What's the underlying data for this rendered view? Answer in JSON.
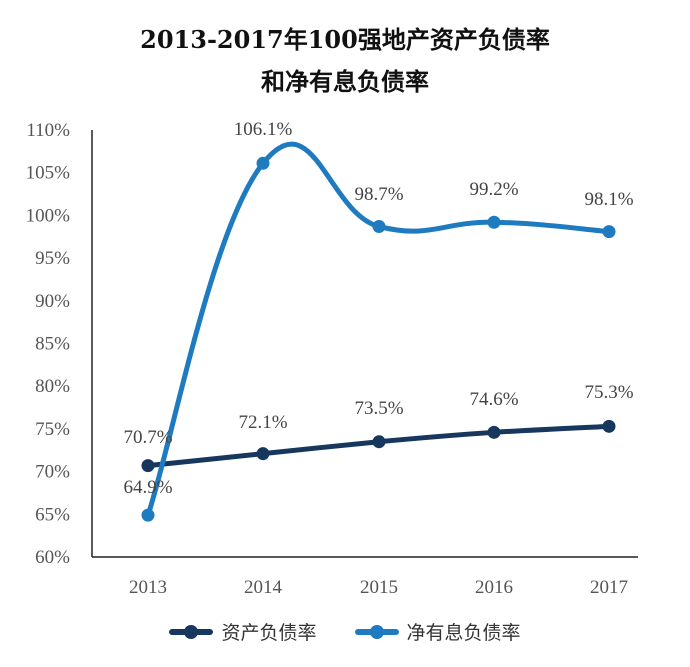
{
  "chart_data": {
    "type": "line",
    "title_line1": "2013-2017年100强地产资产负债率",
    "title_line2": "和净有息负债率",
    "categories": [
      "2013",
      "2014",
      "2015",
      "2016",
      "2017"
    ],
    "y_ticks": [
      "60%",
      "65%",
      "70%",
      "75%",
      "80%",
      "85%",
      "90%",
      "95%",
      "100%",
      "105%",
      "110%"
    ],
    "ylim": [
      60,
      110
    ],
    "grid": false,
    "legend_position": "bottom",
    "series": [
      {
        "name": "资产负债率",
        "color": "#17375e",
        "values": [
          70.7,
          72.1,
          73.5,
          74.6,
          75.3
        ],
        "labels": [
          "70.7%",
          "72.1%",
          "73.5%",
          "74.6%",
          "75.3%"
        ]
      },
      {
        "name": "净有息负债率",
        "color": "#1f7bbf",
        "values": [
          64.9,
          106.1,
          98.7,
          99.2,
          98.1
        ],
        "labels": [
          "64.9%",
          "106.1%",
          "98.7%",
          "99.2%",
          "98.1%"
        ]
      }
    ]
  }
}
